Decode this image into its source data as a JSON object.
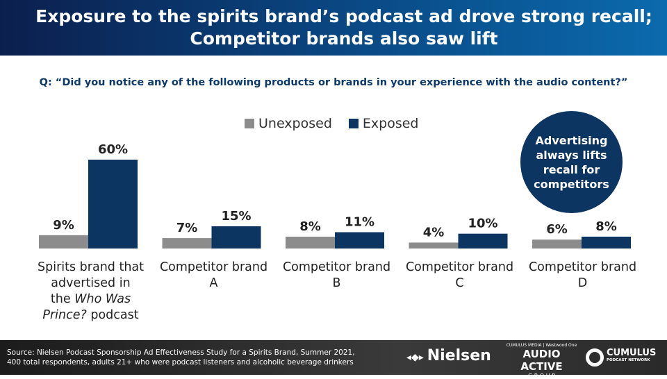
{
  "header": {
    "title": "Exposure to the spirits brand’s podcast ad drove strong recall; Competitor brands also saw lift"
  },
  "question": "Q: “Did you notice any of the following products or brands in your experience with the audio content?”",
  "callout": "Advertising always lifts recall for competitors",
  "chart_data": {
    "type": "bar",
    "categories": [
      "Spirits brand that advertised in the Who Was Prince? podcast",
      "Competitor brand A",
      "Competitor brand B",
      "Competitor brand C",
      "Competitor brand D"
    ],
    "series": [
      {
        "name": "Unexposed",
        "color": "#8c8c8c",
        "values": [
          9,
          7,
          8,
          4,
          6
        ],
        "labels": [
          "9%",
          "7%",
          "8%",
          "4%",
          "6%"
        ]
      },
      {
        "name": "Exposed",
        "color": "#0d3561",
        "values": [
          60,
          15,
          11,
          10,
          8
        ],
        "labels": [
          "60%",
          "15%",
          "11%",
          "10%",
          "8%"
        ]
      }
    ],
    "ylim": [
      0,
      60
    ],
    "legend": "top-center",
    "grid": false
  },
  "cat_lines": [
    [
      "Spirits brand that",
      "advertised in",
      "the ",
      "Who Was",
      "Prince?",
      " podcast"
    ],
    [
      "Competitor brand",
      "A"
    ],
    [
      "Competitor brand",
      "B"
    ],
    [
      "Competitor brand",
      "C"
    ],
    [
      "Competitor brand",
      "D"
    ]
  ],
  "footer": {
    "source_line1": "Source: Nielsen Podcast Sponsorship Ad Effectiveness Study for a Spirits Brand, Summer 2021,",
    "source_line2": "400 total respondents, adults 21+ who were podcast listeners and alcoholic beverage drinkers",
    "logos": {
      "nielsen": "Nielsen",
      "cumulus_media": "CUMULUS MEDIA",
      "westwood": "Westwood One",
      "audio_active": "AUDIO ACTIVE",
      "group": "G R O U P",
      "cumulus": "CUMULUS",
      "podcast_network": "PODCAST NETWORK"
    }
  }
}
